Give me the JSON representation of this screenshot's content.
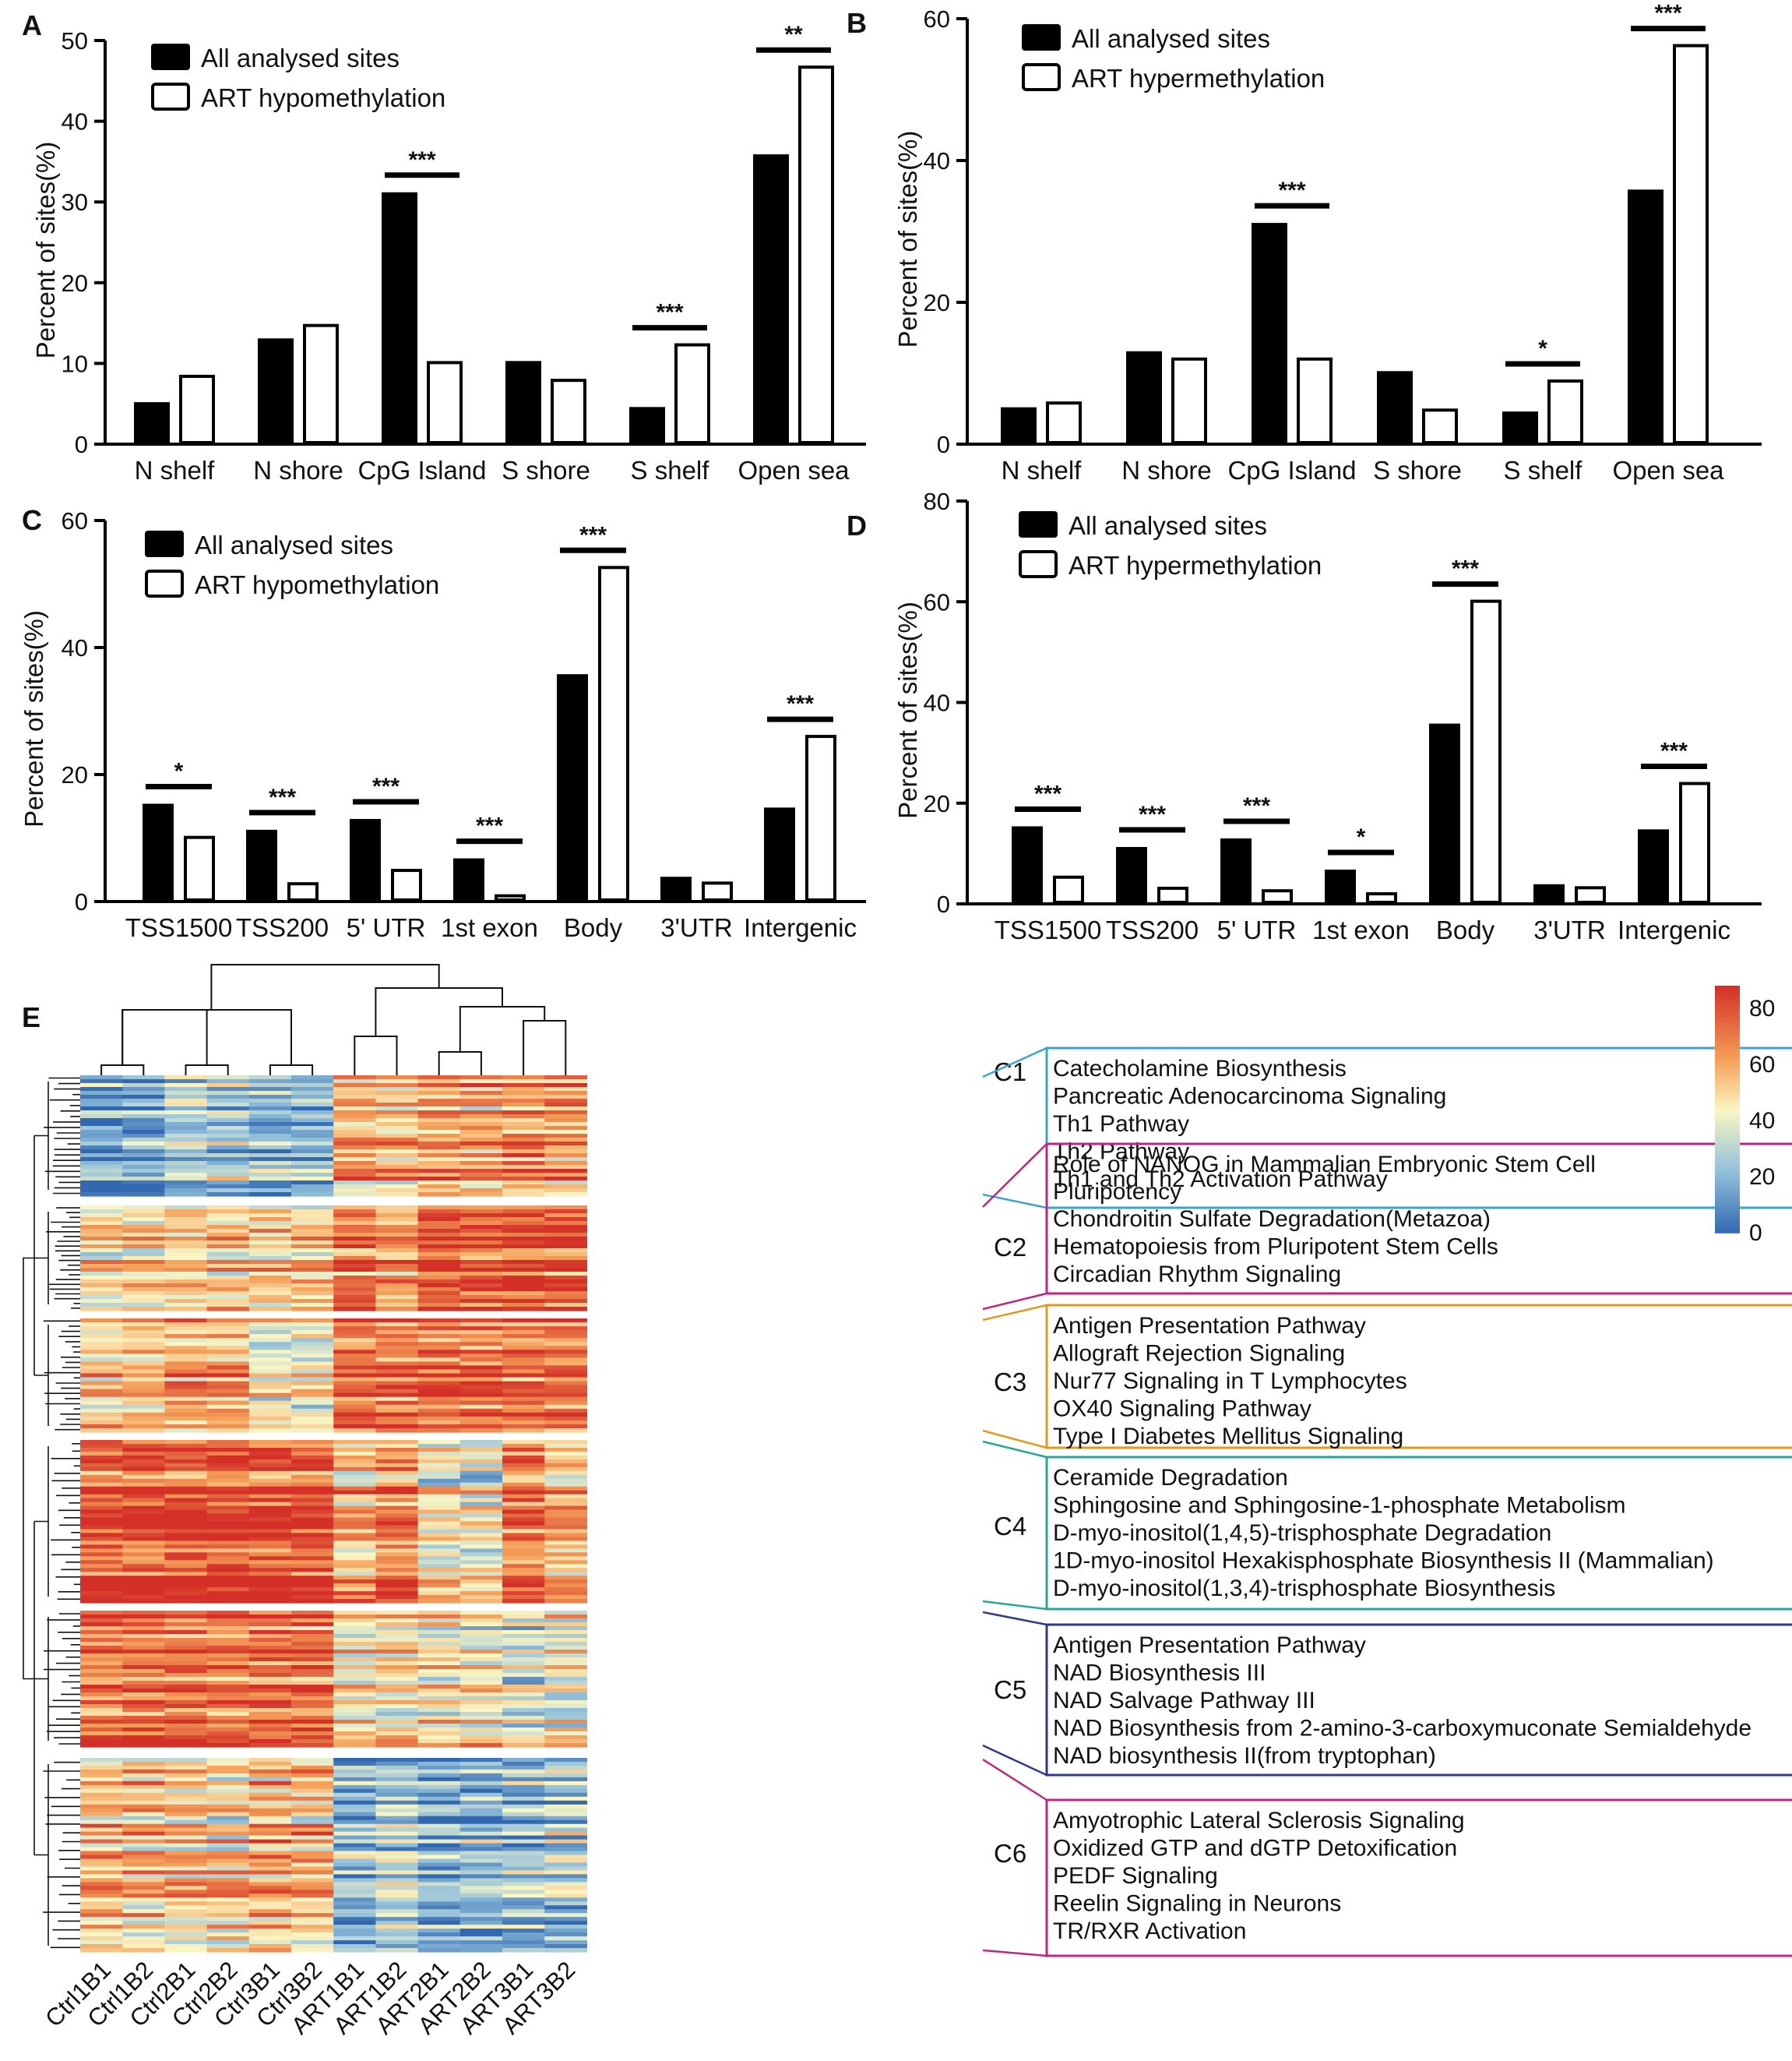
{
  "chart_data": [
    {
      "panel": "A",
      "type": "bar",
      "categories": [
        "N shelf",
        "N shore",
        "CpG Island",
        "S shore",
        "S shelf",
        "Open sea"
      ],
      "series": [
        {
          "name": "All analysed sites",
          "values": [
            5.2,
            13.1,
            31.2,
            10.3,
            4.6,
            35.9
          ]
        },
        {
          "name": "ART hypomethylation",
          "values": [
            8.4,
            14.7,
            10.1,
            7.9,
            12.3,
            46.7
          ]
        }
      ],
      "significance": [
        "",
        "",
        "***",
        "",
        "***",
        "**"
      ],
      "ylabel": "Percent of sites(%)",
      "ylim": [
        0,
        50
      ],
      "yticks": [
        0,
        10,
        20,
        30,
        40,
        50
      ]
    },
    {
      "panel": "B",
      "type": "bar",
      "categories": [
        "N shelf",
        "N shore",
        "CpG Island",
        "S shore",
        "S shelf",
        "Open sea"
      ],
      "series": [
        {
          "name": "All analysed sites",
          "values": [
            5.2,
            13.1,
            31.2,
            10.3,
            4.6,
            35.9
          ]
        },
        {
          "name": "ART hypermethylation",
          "values": [
            5.8,
            12.0,
            12.0,
            4.8,
            8.9,
            56.2
          ]
        }
      ],
      "significance": [
        "",
        "",
        "***",
        "",
        "*",
        "***"
      ],
      "ylabel": "Percent of sites(%)",
      "ylim": [
        0,
        60
      ],
      "yticks": [
        0,
        20,
        40,
        60
      ]
    },
    {
      "panel": "C",
      "type": "bar",
      "categories": [
        "TSS1500",
        "TSS200",
        "5' UTR",
        "1st exon",
        "Body",
        "3'UTR",
        "Intergenic"
      ],
      "series": [
        {
          "name": "All analysed sites",
          "values": [
            15.4,
            11.3,
            13.0,
            6.8,
            35.8,
            3.9,
            14.8
          ]
        },
        {
          "name": "ART hypomethylation",
          "values": [
            10.1,
            2.8,
            4.9,
            0.9,
            52.6,
            2.9,
            26.0
          ]
        }
      ],
      "significance": [
        "*",
        "***",
        "***",
        "***",
        "***",
        "",
        "***"
      ],
      "ylabel": "Percent of sites(%)",
      "ylim": [
        0,
        60
      ],
      "yticks": [
        0,
        20,
        40,
        60
      ]
    },
    {
      "panel": "D",
      "type": "bar",
      "categories": [
        "TSS1500",
        "TSS200",
        "5' UTR",
        "1st exon",
        "Body",
        "3'UTR",
        "Intergenic"
      ],
      "series": [
        {
          "name": "All analysed sites",
          "values": [
            15.4,
            11.3,
            13.0,
            6.8,
            35.8,
            3.9,
            14.8
          ]
        },
        {
          "name": "ART hypermethylation",
          "values": [
            5.3,
            3.1,
            2.6,
            2.0,
            60.1,
            3.2,
            23.9
          ]
        }
      ],
      "significance": [
        "***",
        "***",
        "***",
        "*",
        "***",
        "",
        "***"
      ],
      "ylabel": "Percent of sites(%)",
      "ylim": [
        0,
        80
      ],
      "yticks": [
        0,
        20,
        40,
        60,
        80
      ]
    },
    {
      "panel": "E",
      "type": "heatmap",
      "samples": [
        "Ctrl1B1",
        "Ctrl1B2",
        "Ctrl2B1",
        "Ctrl2B2",
        "Ctrl3B1",
        "Ctrl3B2",
        "ART1B1",
        "ART1B2",
        "ART2B1",
        "ART2B2",
        "ART3B1",
        "ART3B2"
      ],
      "colorbar": {
        "ticks": [
          0,
          20,
          40,
          60,
          80
        ],
        "range": [
          0,
          88
        ]
      },
      "clusters": [
        {
          "label": "C1",
          "color": "#3aa4cf",
          "pathways": [
            "Catecholamine Biosynthesis",
            "Pancreatic Adenocarcinoma Signaling",
            "Th1 Pathway",
            "Th2 Pathway",
            "Th1 and Th2 Activation Pathway"
          ],
          "ctrl_mean": [
            15,
            14,
            28,
            26,
            20,
            19
          ],
          "art_mean": [
            58,
            55,
            62,
            60,
            66,
            63
          ]
        },
        {
          "label": "C2",
          "color": "#c0257f",
          "pathways": [
            "Role of NANOG in Mammalian Embryonic Stem Cell Pluripotency",
            "Chondroitin Sulfate Degradation(Metazoa)",
            "Hematopoiesis from Pluripotent Stem Cells",
            "Circadian Rhythm Signaling"
          ],
          "ctrl_mean": [
            45,
            45,
            48,
            48,
            50,
            50
          ],
          "art_mean": [
            72,
            60,
            75,
            75,
            76,
            74
          ]
        },
        {
          "label": "C3",
          "color": "#e2991c",
          "pathways": [
            "Antigen Presentation Pathway",
            "Allograft Rejection Signaling",
            "Nur77 Signaling in T Lymphocytes",
            "OX40 Signaling Pathway",
            "Type I Diabetes Mellitus Signaling"
          ],
          "ctrl_mean": [
            58,
            56,
            65,
            64,
            48,
            46
          ],
          "art_mean": [
            76,
            76,
            77,
            77,
            78,
            76
          ]
        },
        {
          "label": "C4",
          "color": "#26a69a",
          "pathways": [
            "Ceramide Degradation",
            "Sphingosine and Sphingosine-1-phosphate Metabolism",
            "D-myo-inositol(1,4,5)-trisphosphate Degradation",
            "1D-myo-inositol Hexakisphosphate Biosynthesis II (Mammalian)",
            "D-myo-inositol(1,3,4)-trisphosphate Biosynthesis"
          ],
          "ctrl_mean": [
            80,
            80,
            82,
            82,
            82,
            82
          ],
          "art_mean": [
            58,
            68,
            45,
            42,
            70,
            60
          ]
        },
        {
          "label": "C5",
          "color": "#2d3a8c",
          "pathways": [
            "Antigen Presentation Pathway",
            "NAD Biosynthesis III",
            "NAD Salvage Pathway III",
            "NAD Biosynthesis from 2-amino-3-carboxymuconate Semialdehyde",
            "NAD biosynthesis II(from tryptophan)"
          ],
          "ctrl_mean": [
            72,
            72,
            74,
            74,
            74,
            74
          ],
          "art_mean": [
            48,
            50,
            46,
            46,
            36,
            42
          ]
        },
        {
          "label": "C6",
          "color": "#c0257f",
          "pathways": [
            "Amyotrophic Lateral Sclerosis Signaling",
            "Oxidized GTP and dGTP Detoxification",
            "PEDF Signaling",
            "Reelin Signaling in Neurons",
            "TR/RXR Activation"
          ],
          "ctrl_mean": [
            56,
            54,
            52,
            50,
            56,
            54
          ],
          "art_mean": [
            22,
            28,
            20,
            20,
            22,
            26
          ]
        }
      ]
    }
  ],
  "colors": {
    "bar_fill": "#000000",
    "hollow_fill": "#ffffff",
    "heat_low": "#3a6fb8",
    "heat_mid": "#fbf6c4",
    "heat_high": "#d73027"
  }
}
